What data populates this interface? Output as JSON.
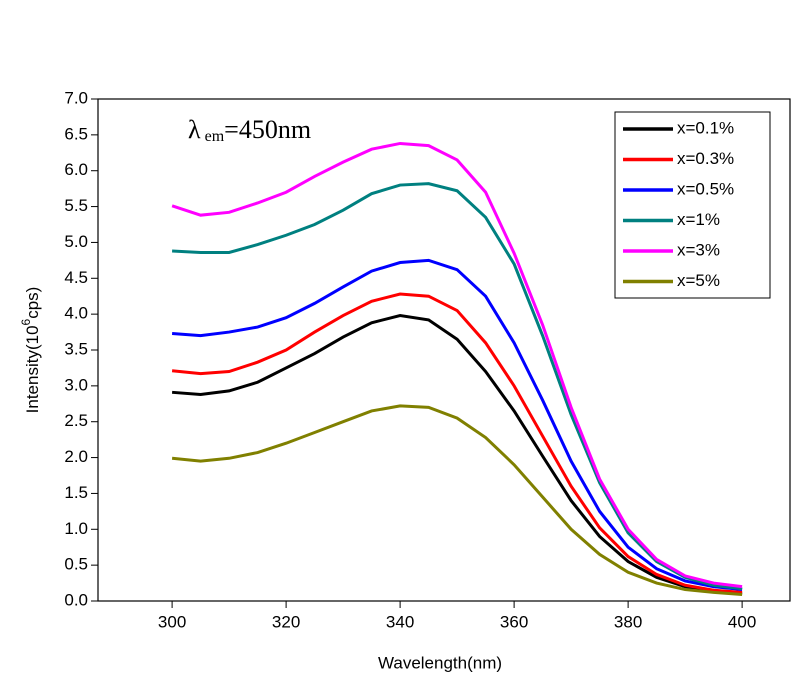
{
  "chart_data": {
    "type": "line",
    "x_label": "Wavelength(nm)",
    "y_label": [
      "Intensity(10",
      "6",
      "cps)"
    ],
    "annotation": [
      "λ",
      "em",
      "=450nm"
    ],
    "x": [
      300,
      305,
      310,
      315,
      320,
      325,
      330,
      335,
      340,
      345,
      350,
      355,
      360,
      365,
      370,
      375,
      380,
      385,
      390,
      395,
      400
    ],
    "series": [
      {
        "name": "x=0.1%",
        "color": "#000000",
        "values": [
          2.91,
          2.88,
          2.93,
          3.05,
          3.25,
          3.45,
          3.68,
          3.88,
          3.98,
          3.92,
          3.65,
          3.2,
          2.65,
          2.02,
          1.4,
          0.9,
          0.55,
          0.33,
          0.2,
          0.13,
          0.1
        ]
      },
      {
        "name": "x=0.3%",
        "color": "#ff0000",
        "values": [
          3.21,
          3.17,
          3.2,
          3.33,
          3.5,
          3.75,
          3.98,
          4.18,
          4.28,
          4.25,
          4.05,
          3.6,
          3.0,
          2.3,
          1.6,
          1.02,
          0.62,
          0.37,
          0.22,
          0.15,
          0.12
        ]
      },
      {
        "name": "x=0.5%",
        "color": "#0000ff",
        "values": [
          3.73,
          3.7,
          3.75,
          3.82,
          3.95,
          4.15,
          4.38,
          4.6,
          4.72,
          4.75,
          4.62,
          4.25,
          3.6,
          2.8,
          1.95,
          1.25,
          0.75,
          0.45,
          0.28,
          0.2,
          0.16
        ]
      },
      {
        "name": "x=1%",
        "color": "#008080",
        "values": [
          4.88,
          4.86,
          4.86,
          4.97,
          5.1,
          5.25,
          5.45,
          5.68,
          5.8,
          5.82,
          5.72,
          5.35,
          4.7,
          3.7,
          2.6,
          1.65,
          0.95,
          0.55,
          0.33,
          0.22,
          0.17
        ]
      },
      {
        "name": "x=3%",
        "color": "#ff00ff",
        "values": [
          5.51,
          5.38,
          5.42,
          5.55,
          5.7,
          5.92,
          6.12,
          6.3,
          6.38,
          6.35,
          6.15,
          5.7,
          4.85,
          3.85,
          2.7,
          1.7,
          1.0,
          0.58,
          0.35,
          0.25,
          0.2
        ]
      },
      {
        "name": "x=5%",
        "color": "#808000",
        "values": [
          1.99,
          1.95,
          1.99,
          2.07,
          2.2,
          2.35,
          2.5,
          2.65,
          2.72,
          2.7,
          2.55,
          2.28,
          1.9,
          1.45,
          1.0,
          0.65,
          0.4,
          0.25,
          0.16,
          0.12,
          0.09
        ]
      }
    ],
    "xlim": [
      287,
      408.4
    ],
    "ylim": [
      0,
      7
    ],
    "xticks": [
      300,
      320,
      340,
      360,
      380,
      400
    ],
    "yticks": [
      {
        "value": 0,
        "label": "0.0"
      },
      {
        "value": 0.5,
        "label": "0.5"
      },
      {
        "value": 1,
        "label": "1.0"
      },
      {
        "value": 1.5,
        "label": "1.5"
      },
      {
        "value": 2,
        "label": "2.0"
      },
      {
        "value": 2.5,
        "label": "2.5"
      },
      {
        "value": 3,
        "label": "3.0"
      },
      {
        "value": 3.5,
        "label": "3.5"
      },
      {
        "value": 4,
        "label": "4.0"
      },
      {
        "value": 4.5,
        "label": "4.5"
      },
      {
        "value": 5,
        "label": "5.0"
      },
      {
        "value": 5.5,
        "label": "5.5"
      },
      {
        "value": 6,
        "label": "6.0"
      },
      {
        "value": 6.5,
        "label": "6.5"
      },
      {
        "value": 7,
        "label": "7.0"
      }
    ],
    "legend": "upper right"
  }
}
